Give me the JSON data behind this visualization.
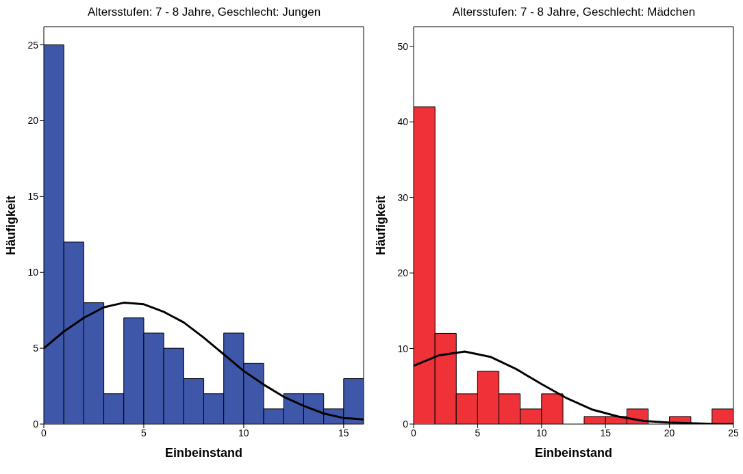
{
  "chart_data": [
    {
      "type": "histogram",
      "title": "Altersstufen: 7 - 8 Jahre, Geschlecht: Jungen",
      "xlabel": "Einbeinstand",
      "ylabel": "Häufigkeit",
      "color": "#3f57a8",
      "bins": [
        0,
        1,
        2,
        3,
        4,
        5,
        6,
        7,
        8,
        9,
        10,
        11,
        12,
        13,
        14,
        15,
        16
      ],
      "values": [
        25,
        12,
        8,
        2,
        7,
        6,
        5,
        3,
        2,
        6,
        4,
        1,
        2,
        2,
        1,
        3
      ],
      "series": [
        {
          "type": "line",
          "color": "#000000",
          "x": [
            0,
            1,
            2,
            3,
            4,
            5,
            6,
            7,
            8,
            9,
            10,
            11,
            12,
            13,
            14,
            15,
            16
          ],
          "values": [
            5.0,
            6.1,
            7.0,
            7.7,
            8.0,
            7.9,
            7.4,
            6.7,
            5.7,
            4.6,
            3.5,
            2.6,
            1.8,
            1.2,
            0.7,
            0.4,
            0.3
          ]
        }
      ],
      "xlim": [
        0,
        16
      ],
      "xticks": [
        0,
        5,
        10,
        15
      ],
      "ylim": [
        0,
        26.2
      ],
      "yticks": [
        0,
        5,
        10,
        15,
        20,
        25
      ],
      "grid": false
    },
    {
      "type": "histogram",
      "title": "Altersstufen: 7 - 8 Jahre, Geschlecht: Mädchen",
      "xlabel": "Einbeinstand",
      "ylabel": "Häufigkeit",
      "color": "#ee3238",
      "bins": [
        0,
        1.67,
        3.33,
        5,
        6.67,
        8.33,
        10,
        11.67,
        13.33,
        15,
        16.67,
        18.33,
        20,
        21.67,
        23.33,
        25
      ],
      "values": [
        42,
        12,
        4,
        7,
        4,
        2,
        4,
        0,
        1,
        1,
        2,
        0,
        1,
        0,
        2
      ],
      "series": [
        {
          "type": "line",
          "color": "#000000",
          "x": [
            0,
            2,
            4,
            6,
            8,
            10,
            12,
            14,
            16,
            18,
            20,
            22,
            24,
            25
          ],
          "values": [
            7.7,
            9.1,
            9.6,
            8.9,
            7.3,
            5.3,
            3.4,
            1.9,
            1.0,
            0.4,
            0.2,
            0.1,
            0.0,
            0.0
          ]
        }
      ],
      "xlim": [
        0,
        25
      ],
      "xticks": [
        0,
        5,
        10,
        15,
        20,
        25
      ],
      "ylim": [
        0,
        52.6
      ],
      "yticks": [
        0,
        10,
        20,
        30,
        40,
        50
      ],
      "grid": false
    }
  ]
}
